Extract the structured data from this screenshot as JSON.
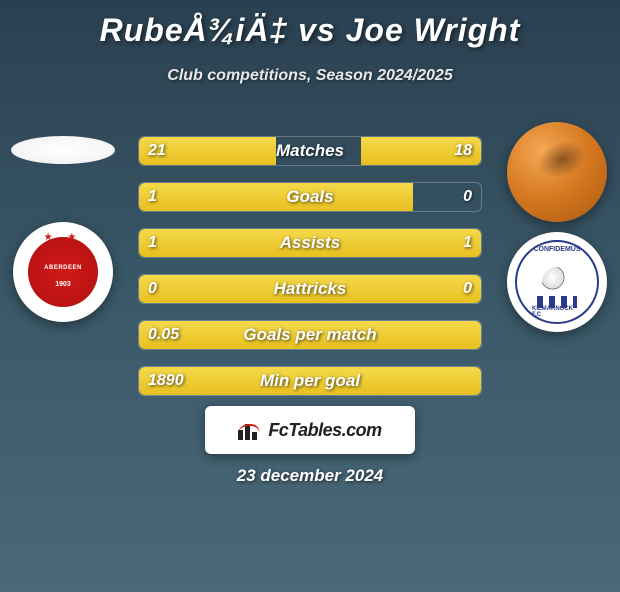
{
  "title": "RubeÅ¾iÄ‡ vs Joe Wright",
  "subtitle": "Club competitions, Season 2024/2025",
  "date": "23 december 2024",
  "watermark": "FcTables.com",
  "left_player": {
    "name": "RubeÅ¾iÄ‡",
    "club": "Aberdeen",
    "club_year": "1903"
  },
  "right_player": {
    "name": "Joe Wright",
    "club": "Kilmarnock"
  },
  "colors": {
    "bar_fill_top": "#f5d94a",
    "bar_fill_bottom": "#e8c020",
    "text": "#ffffff",
    "bg_top": "#2a4050",
    "bg_bottom": "#4a6878",
    "club_left_accent": "#d21919",
    "club_right_accent": "#2a3a8a"
  },
  "stats": [
    {
      "label": "Matches",
      "left_val": "21",
      "right_val": "18",
      "left_pct": 40,
      "right_pct": 35,
      "single": false
    },
    {
      "label": "Goals",
      "left_val": "1",
      "right_val": "0",
      "left_pct": 80,
      "right_pct": 0,
      "single": false
    },
    {
      "label": "Assists",
      "left_val": "1",
      "right_val": "1",
      "left_pct": 50,
      "right_pct": 50,
      "single": false
    },
    {
      "label": "Hattricks",
      "left_val": "0",
      "right_val": "0",
      "left_pct": 50,
      "right_pct": 50,
      "single": false
    },
    {
      "label": "Goals per match",
      "left_val": "0.05",
      "right_val": "",
      "left_pct": 100,
      "right_pct": 0,
      "single": true
    },
    {
      "label": "Min per goal",
      "left_val": "1890",
      "right_val": "",
      "left_pct": 100,
      "right_pct": 0,
      "single": true
    }
  ]
}
